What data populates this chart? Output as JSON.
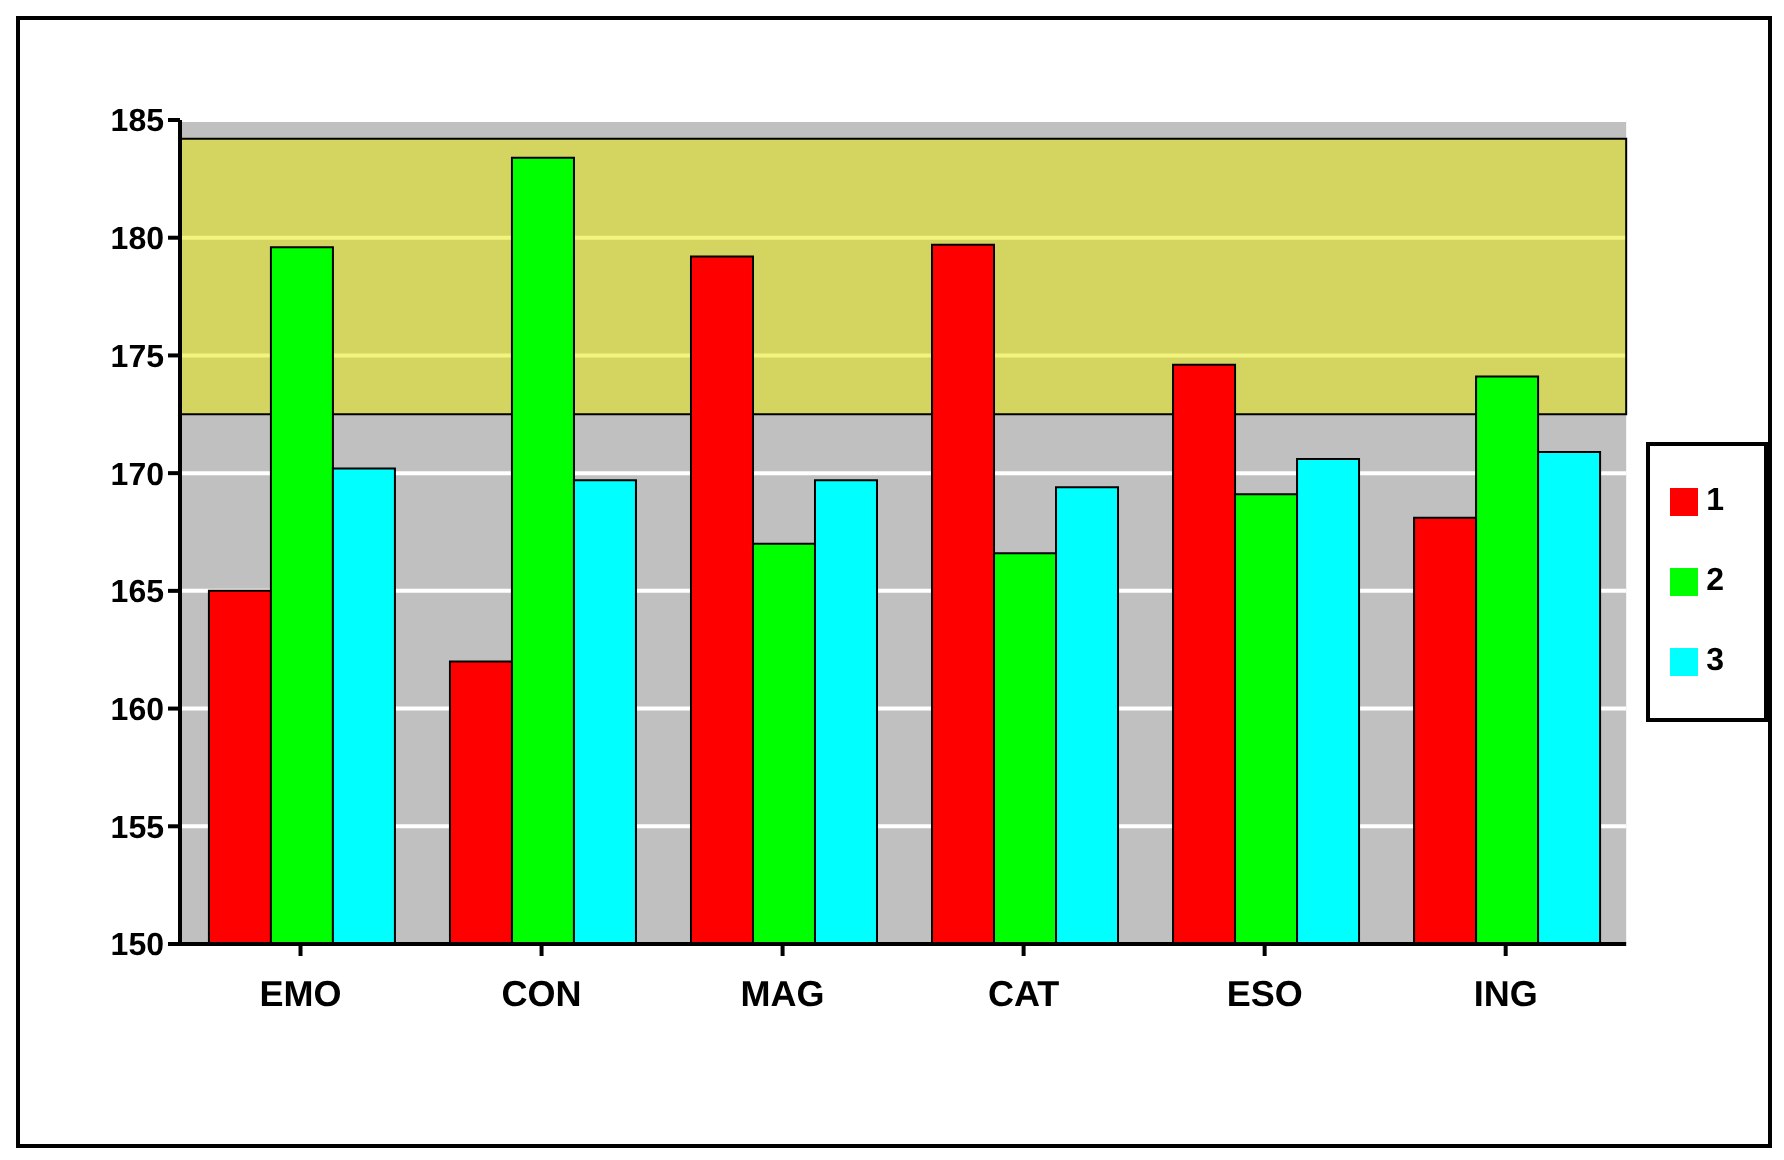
{
  "chart_data": {
    "type": "bar",
    "categories": [
      "EMO",
      "CON",
      "MAG",
      "CAT",
      "ESO",
      "ING"
    ],
    "series": [
      {
        "name": "1",
        "color": "#ff0000",
        "values": [
          165.0,
          162.0,
          179.2,
          179.7,
          174.6,
          168.1
        ]
      },
      {
        "name": "2",
        "color": "#00ff00",
        "values": [
          179.6,
          183.4,
          167.0,
          166.6,
          169.1,
          174.1
        ]
      },
      {
        "name": "3",
        "color": "#00ffff",
        "values": [
          170.2,
          169.7,
          169.7,
          169.4,
          170.6,
          170.9
        ]
      }
    ],
    "ylim": [
      150,
      185
    ],
    "yticks": [
      150,
      155,
      160,
      165,
      170,
      175,
      180,
      185
    ],
    "grid": "y",
    "legend": "right",
    "bands": [
      {
        "axis": "y",
        "from": 172.5,
        "to": 184.2,
        "color": "#e8e800"
      }
    ]
  }
}
